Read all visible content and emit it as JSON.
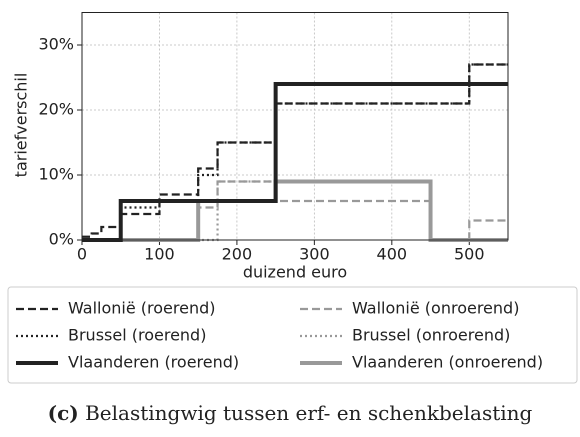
{
  "chart_data": {
    "type": "line",
    "step": "post",
    "x": [
      0,
      12.5,
      25,
      50,
      100,
      150,
      175,
      250,
      450,
      500,
      550
    ],
    "xlim": [
      0,
      550
    ],
    "xticks": [
      0,
      100,
      200,
      300,
      400,
      500
    ],
    "ylim": [
      0,
      35
    ],
    "yticks": [
      {
        "value": 0,
        "label": "0%"
      },
      {
        "value": 10,
        "label": "10%"
      },
      {
        "value": 20,
        "label": "20%"
      },
      {
        "value": 30,
        "label": "30%"
      }
    ],
    "xlabel": "duizend euro",
    "ylabel": "tariefverschil",
    "grid": true,
    "series": [
      {
        "name": "Wallonië (roerend)",
        "color": "#222222",
        "style": "dashed",
        "values": [
          0.5,
          1,
          2,
          4,
          7,
          11,
          15,
          21,
          21,
          27,
          27
        ]
      },
      {
        "name": "Wallonië (onroerend)",
        "color": "#999999",
        "style": "dashed",
        "values": [
          0,
          0,
          0,
          0,
          0,
          5,
          9,
          6,
          0,
          3,
          3
        ]
      },
      {
        "name": "Brussel (roerend)",
        "color": "#222222",
        "style": "dotted",
        "values": [
          0,
          0,
          0,
          5,
          6,
          10,
          15,
          21,
          21,
          27,
          27
        ]
      },
      {
        "name": "Brussel (onroerend)",
        "color": "#999999",
        "style": "dotted",
        "values": [
          0,
          0,
          0,
          0,
          0,
          0,
          9,
          9,
          0,
          0,
          0
        ]
      },
      {
        "name": "Vlaanderen (roerend)",
        "color": "#222222",
        "style": "solid",
        "values": [
          0,
          0,
          0,
          6,
          6,
          6,
          6,
          24,
          24,
          24,
          24
        ]
      },
      {
        "name": "Vlaanderen (onroerend)",
        "color": "#999999",
        "style": "solid",
        "values": [
          0,
          0,
          0,
          0,
          0,
          6,
          6,
          9,
          0,
          0,
          0
        ]
      }
    ],
    "caption_label": "(c)",
    "caption": "Belastingwig tussen erf- en schenkbelasting"
  }
}
